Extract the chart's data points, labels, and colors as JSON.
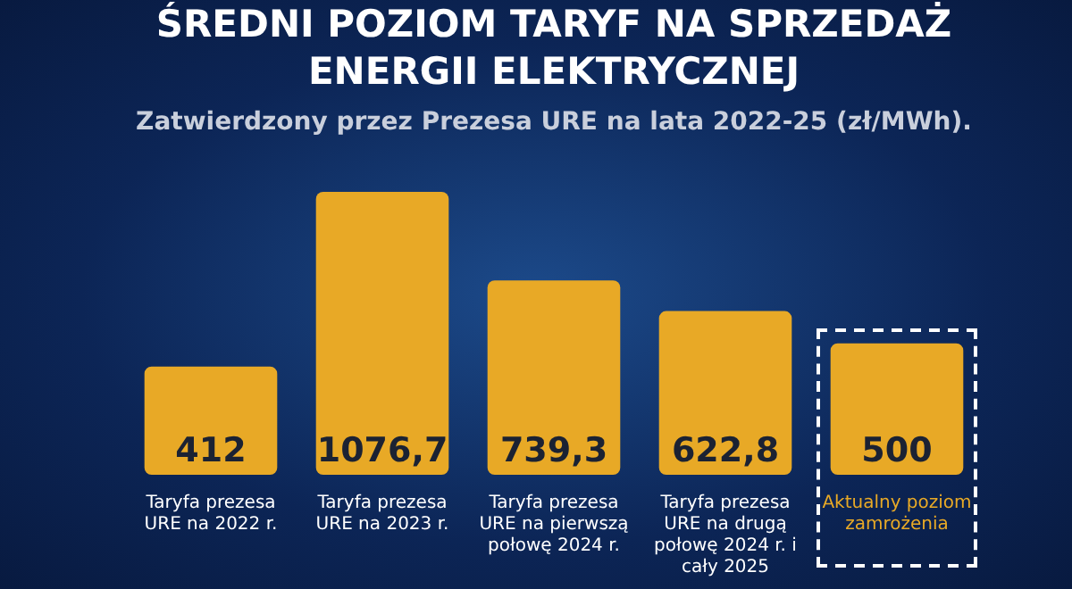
{
  "chart_data": {
    "type": "bar",
    "title": "ŚREDNI POZIOM TARYF NA SPRZEDAŻ ENERGII ELEKTRYCZNEJ",
    "subtitle": "Zatwierdzony przez Prezesa URE na lata 2022-25 (zł/MWh).",
    "categories": [
      "Taryfa prezesa URE na 2022 r.",
      "Taryfa prezesa URE na 2023 r.",
      "Taryfa prezesa URE na pierwszą połowę 2024 r.",
      "Taryfa prezesa URE na drugą połowę 2024 r. i cały 2025",
      "Aktualny poziom zamrożenia"
    ],
    "values": [
      412,
      1076.7,
      739.3,
      622.8,
      500
    ],
    "value_labels": [
      "412",
      "1076,7",
      "739,3",
      "622,8",
      "500"
    ],
    "color": "#e8a926",
    "grid": false,
    "legend": false
  }
}
